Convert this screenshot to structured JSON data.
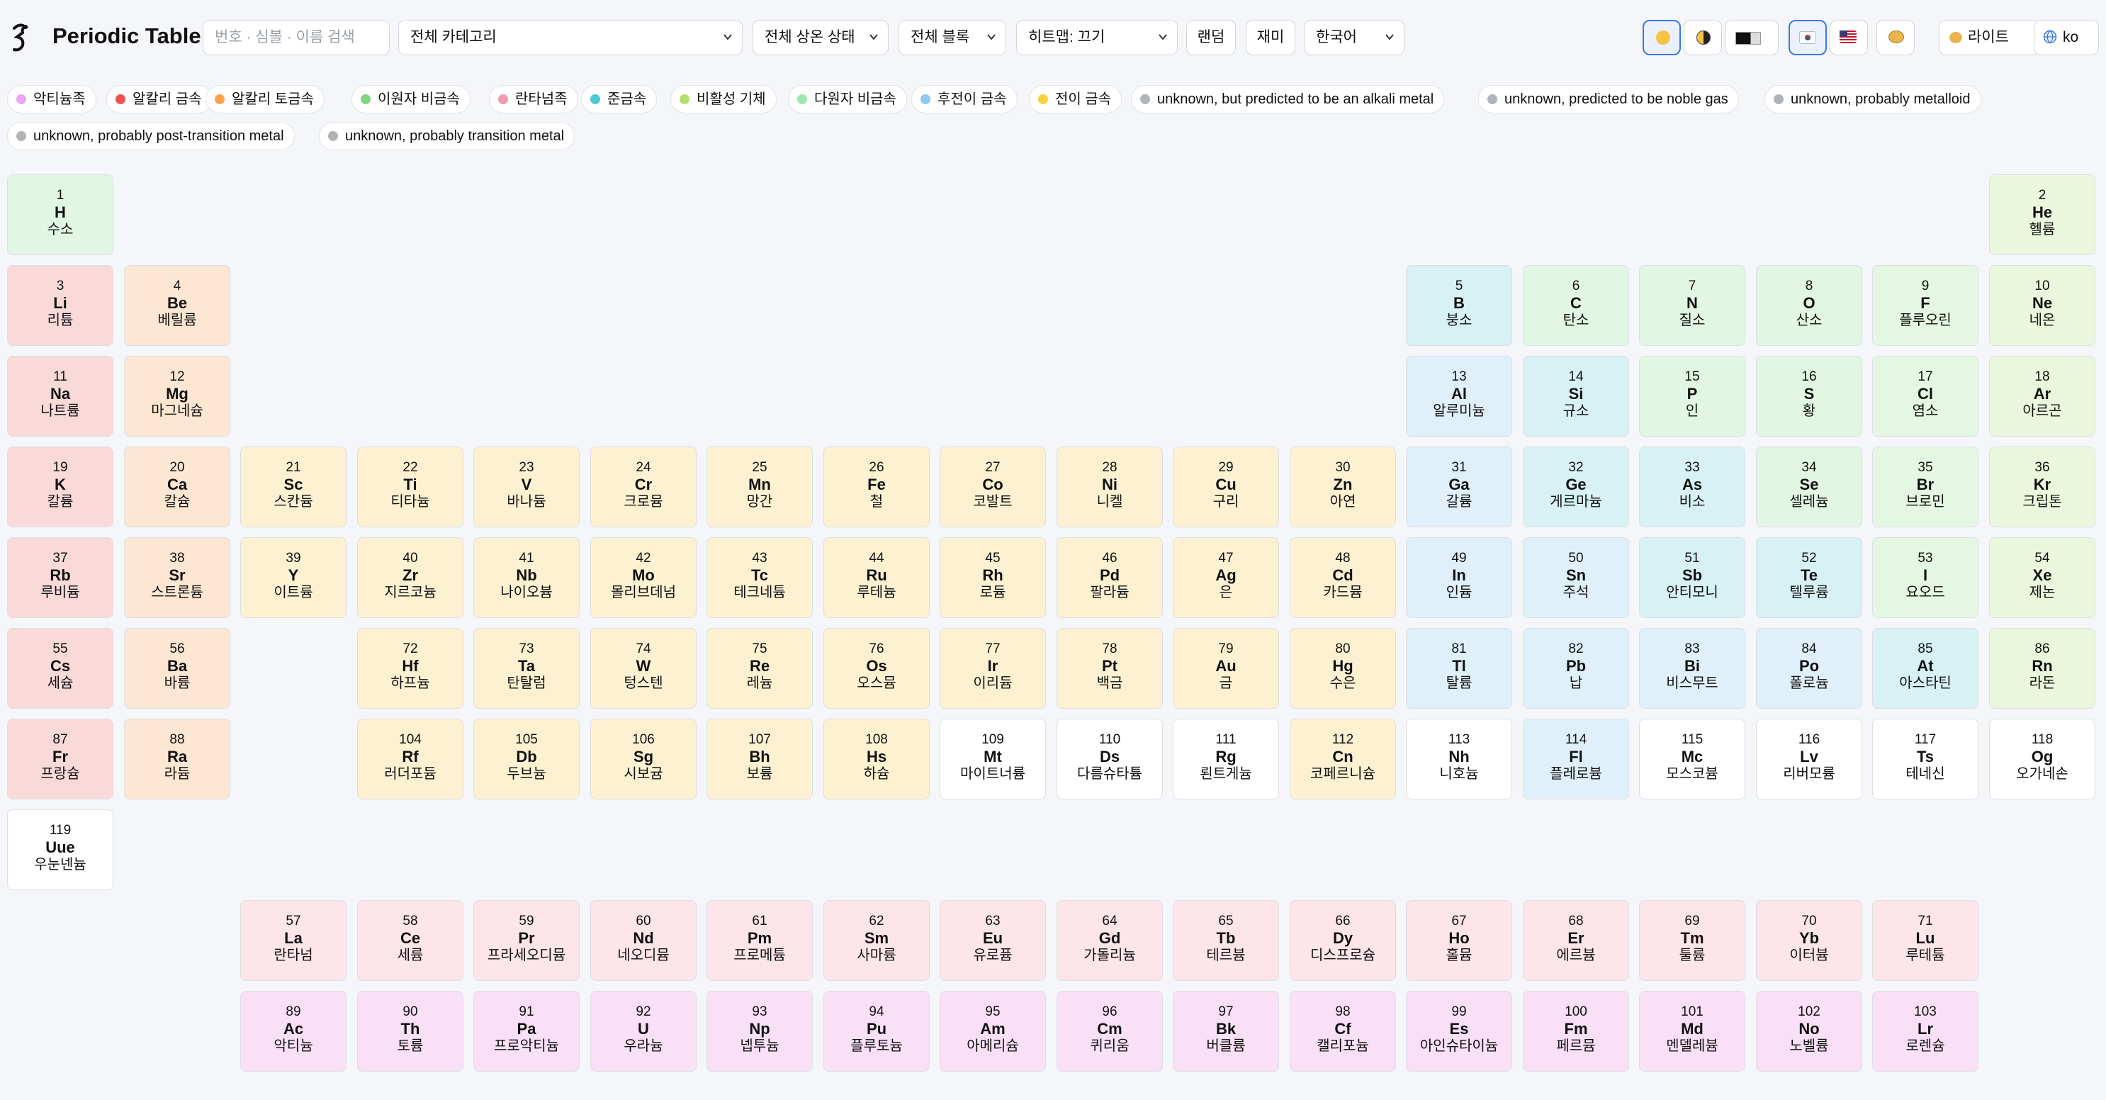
{
  "toolbar": {
    "title": "Periodic Table",
    "search_placeholder": "번호 · 심볼 · 이름 검색",
    "category_select": "전체 카테고리",
    "phase_select": "전체 상온 상태",
    "block_select": "전체 블록",
    "heatmap_select": "히트맵: 끄기",
    "random_button": "랜덤",
    "fun_button": "재미",
    "language_select": "한국어",
    "theme_label": "라이트",
    "locale_label": "ko",
    "icons": [
      "sun-icon",
      "contrast-icon",
      "dark-mode-icon",
      "flag-kr-icon",
      "flag-us-icon",
      "palette-icon",
      "globe-icon"
    ]
  },
  "legend": [
    {
      "label": "악티늄족",
      "color": "#e6a8f0"
    },
    {
      "label": "알칼리 금속",
      "color": "#ef5350"
    },
    {
      "label": "알칼리 토금속",
      "color": "#ffa24c"
    },
    {
      "label": "이원자 비금속",
      "color": "#7fd67f"
    },
    {
      "label": "란타넘족",
      "color": "#f59ab2"
    },
    {
      "label": "준금속",
      "color": "#4cc9d8"
    },
    {
      "label": "비활성 기체",
      "color": "#b5e06b"
    },
    {
      "label": "다원자 비금속",
      "color": "#9ee6b0"
    },
    {
      "label": "후전이 금속",
      "color": "#8fc8f3"
    },
    {
      "label": "전이 금속",
      "color": "#f6d43a"
    },
    {
      "label": "unknown, but predicted to be an alkali metal",
      "color": "#b0b4b9"
    },
    {
      "label": "unknown, predicted to be noble gas",
      "color": "#b0b4b9"
    },
    {
      "label": "unknown, probably metalloid",
      "color": "#b0b4b9"
    },
    {
      "label": "unknown, probably post-transition metal",
      "color": "#b0b4b9"
    },
    {
      "label": "unknown, probably transition metal",
      "color": "#b0b4b9"
    }
  ],
  "elements": [
    {
      "n": "1",
      "s": "H",
      "k": "수소",
      "c": "nonmetal"
    },
    {
      "n": "2",
      "s": "He",
      "k": "헬륨",
      "c": "noble"
    },
    {
      "n": "3",
      "s": "Li",
      "k": "리튬",
      "c": "alkali"
    },
    {
      "n": "4",
      "s": "Be",
      "k": "베릴륨",
      "c": "alkaline"
    },
    {
      "n": "5",
      "s": "B",
      "k": "붕소",
      "c": "metalloid"
    },
    {
      "n": "6",
      "s": "C",
      "k": "탄소",
      "c": "nonmetal"
    },
    {
      "n": "7",
      "s": "N",
      "k": "질소",
      "c": "nonmetal"
    },
    {
      "n": "8",
      "s": "O",
      "k": "산소",
      "c": "nonmetal"
    },
    {
      "n": "9",
      "s": "F",
      "k": "플루오린",
      "c": "halogen"
    },
    {
      "n": "10",
      "s": "Ne",
      "k": "네온",
      "c": "noble"
    },
    {
      "n": "11",
      "s": "Na",
      "k": "나트륨",
      "c": "alkali"
    },
    {
      "n": "12",
      "s": "Mg",
      "k": "마그네슘",
      "c": "alkaline"
    },
    {
      "n": "13",
      "s": "Al",
      "k": "알루미늄",
      "c": "post"
    },
    {
      "n": "14",
      "s": "Si",
      "k": "규소",
      "c": "metalloid"
    },
    {
      "n": "15",
      "s": "P",
      "k": "인",
      "c": "nonmetal"
    },
    {
      "n": "16",
      "s": "S",
      "k": "황",
      "c": "nonmetal"
    },
    {
      "n": "17",
      "s": "Cl",
      "k": "염소",
      "c": "halogen"
    },
    {
      "n": "18",
      "s": "Ar",
      "k": "아르곤",
      "c": "noble"
    },
    {
      "n": "19",
      "s": "K",
      "k": "칼륨",
      "c": "alkali"
    },
    {
      "n": "20",
      "s": "Ca",
      "k": "칼슘",
      "c": "alkaline"
    },
    {
      "n": "21",
      "s": "Sc",
      "k": "스칸듐",
      "c": "transition"
    },
    {
      "n": "22",
      "s": "Ti",
      "k": "티타늄",
      "c": "transition"
    },
    {
      "n": "23",
      "s": "V",
      "k": "바나듐",
      "c": "transition"
    },
    {
      "n": "24",
      "s": "Cr",
      "k": "크로뮴",
      "c": "transition"
    },
    {
      "n": "25",
      "s": "Mn",
      "k": "망간",
      "c": "transition"
    },
    {
      "n": "26",
      "s": "Fe",
      "k": "철",
      "c": "transition"
    },
    {
      "n": "27",
      "s": "Co",
      "k": "코발트",
      "c": "transition"
    },
    {
      "n": "28",
      "s": "Ni",
      "k": "니켈",
      "c": "transition"
    },
    {
      "n": "29",
      "s": "Cu",
      "k": "구리",
      "c": "transition"
    },
    {
      "n": "30",
      "s": "Zn",
      "k": "아연",
      "c": "transition"
    },
    {
      "n": "31",
      "s": "Ga",
      "k": "갈륨",
      "c": "post"
    },
    {
      "n": "32",
      "s": "Ge",
      "k": "게르마늄",
      "c": "metalloid"
    },
    {
      "n": "33",
      "s": "As",
      "k": "비소",
      "c": "metalloid"
    },
    {
      "n": "34",
      "s": "Se",
      "k": "셀레늄",
      "c": "nonmetal"
    },
    {
      "n": "35",
      "s": "Br",
      "k": "브로민",
      "c": "halogen"
    },
    {
      "n": "36",
      "s": "Kr",
      "k": "크립톤",
      "c": "noble"
    },
    {
      "n": "37",
      "s": "Rb",
      "k": "루비듐",
      "c": "alkali"
    },
    {
      "n": "38",
      "s": "Sr",
      "k": "스트론튬",
      "c": "alkaline"
    },
    {
      "n": "39",
      "s": "Y",
      "k": "이트륨",
      "c": "transition"
    },
    {
      "n": "40",
      "s": "Zr",
      "k": "지르코늄",
      "c": "transition"
    },
    {
      "n": "41",
      "s": "Nb",
      "k": "나이오븀",
      "c": "transition"
    },
    {
      "n": "42",
      "s": "Mo",
      "k": "몰리브데넘",
      "c": "transition"
    },
    {
      "n": "43",
      "s": "Tc",
      "k": "테크네튬",
      "c": "transition"
    },
    {
      "n": "44",
      "s": "Ru",
      "k": "루테늄",
      "c": "transition"
    },
    {
      "n": "45",
      "s": "Rh",
      "k": "로듐",
      "c": "transition"
    },
    {
      "n": "46",
      "s": "Pd",
      "k": "팔라듐",
      "c": "transition"
    },
    {
      "n": "47",
      "s": "Ag",
      "k": "은",
      "c": "transition"
    },
    {
      "n": "48",
      "s": "Cd",
      "k": "카드뮴",
      "c": "transition"
    },
    {
      "n": "49",
      "s": "In",
      "k": "인듐",
      "c": "post"
    },
    {
      "n": "50",
      "s": "Sn",
      "k": "주석",
      "c": "post"
    },
    {
      "n": "51",
      "s": "Sb",
      "k": "안티모니",
      "c": "metalloid"
    },
    {
      "n": "52",
      "s": "Te",
      "k": "텔루륨",
      "c": "metalloid"
    },
    {
      "n": "53",
      "s": "I",
      "k": "요오드",
      "c": "halogen"
    },
    {
      "n": "54",
      "s": "Xe",
      "k": "제논",
      "c": "noble"
    },
    {
      "n": "55",
      "s": "Cs",
      "k": "세슘",
      "c": "alkali"
    },
    {
      "n": "56",
      "s": "Ba",
      "k": "바륨",
      "c": "alkaline"
    },
    {
      "n": "72",
      "s": "Hf",
      "k": "하프늄",
      "c": "transition"
    },
    {
      "n": "73",
      "s": "Ta",
      "k": "탄탈럼",
      "c": "transition"
    },
    {
      "n": "74",
      "s": "W",
      "k": "텅스텐",
      "c": "transition"
    },
    {
      "n": "75",
      "s": "Re",
      "k": "레늄",
      "c": "transition"
    },
    {
      "n": "76",
      "s": "Os",
      "k": "오스뮴",
      "c": "transition"
    },
    {
      "n": "77",
      "s": "Ir",
      "k": "이리듐",
      "c": "transition"
    },
    {
      "n": "78",
      "s": "Pt",
      "k": "백금",
      "c": "transition"
    },
    {
      "n": "79",
      "s": "Au",
      "k": "금",
      "c": "transition"
    },
    {
      "n": "80",
      "s": "Hg",
      "k": "수은",
      "c": "transition"
    },
    {
      "n": "81",
      "s": "Tl",
      "k": "탈륨",
      "c": "post"
    },
    {
      "n": "82",
      "s": "Pb",
      "k": "납",
      "c": "post"
    },
    {
      "n": "83",
      "s": "Bi",
      "k": "비스무트",
      "c": "post"
    },
    {
      "n": "84",
      "s": "Po",
      "k": "폴로늄",
      "c": "post"
    },
    {
      "n": "85",
      "s": "At",
      "k": "아스타틴",
      "c": "metalloid"
    },
    {
      "n": "86",
      "s": "Rn",
      "k": "라돈",
      "c": "noble"
    },
    {
      "n": "87",
      "s": "Fr",
      "k": "프랑슘",
      "c": "alkali"
    },
    {
      "n": "88",
      "s": "Ra",
      "k": "라듐",
      "c": "alkaline"
    },
    {
      "n": "104",
      "s": "Rf",
      "k": "러더포듐",
      "c": "transition"
    },
    {
      "n": "105",
      "s": "Db",
      "k": "두브늄",
      "c": "transition"
    },
    {
      "n": "106",
      "s": "Sg",
      "k": "시보귬",
      "c": "transition"
    },
    {
      "n": "107",
      "s": "Bh",
      "k": "보륨",
      "c": "transition"
    },
    {
      "n": "108",
      "s": "Hs",
      "k": "하슘",
      "c": "transition"
    },
    {
      "n": "109",
      "s": "Mt",
      "k": "마이트너륨",
      "c": "unknown"
    },
    {
      "n": "110",
      "s": "Ds",
      "k": "다름슈타튬",
      "c": "unknown"
    },
    {
      "n": "111",
      "s": "Rg",
      "k": "뢴트게늄",
      "c": "unknown"
    },
    {
      "n": "112",
      "s": "Cn",
      "k": "코페르니슘",
      "c": "transition"
    },
    {
      "n": "113",
      "s": "Nh",
      "k": "니호늄",
      "c": "unknown"
    },
    {
      "n": "114",
      "s": "Fl",
      "k": "플레로븀",
      "c": "post"
    },
    {
      "n": "115",
      "s": "Mc",
      "k": "모스코븀",
      "c": "unknown"
    },
    {
      "n": "116",
      "s": "Lv",
      "k": "리버모륨",
      "c": "unknown"
    },
    {
      "n": "117",
      "s": "Ts",
      "k": "테네신",
      "c": "unknown"
    },
    {
      "n": "118",
      "s": "Og",
      "k": "오가네손",
      "c": "unknown"
    },
    {
      "n": "119",
      "s": "Uue",
      "k": "우눈넨늄",
      "c": "unknown"
    },
    {
      "n": "57",
      "s": "La",
      "k": "란타넘",
      "c": "lanth"
    },
    {
      "n": "58",
      "s": "Ce",
      "k": "세륨",
      "c": "lanth"
    },
    {
      "n": "59",
      "s": "Pr",
      "k": "프라세오디뮴",
      "c": "lanth"
    },
    {
      "n": "60",
      "s": "Nd",
      "k": "네오디뮴",
      "c": "lanth"
    },
    {
      "n": "61",
      "s": "Pm",
      "k": "프로메튬",
      "c": "lanth"
    },
    {
      "n": "62",
      "s": "Sm",
      "k": "사마륨",
      "c": "lanth"
    },
    {
      "n": "63",
      "s": "Eu",
      "k": "유로퓸",
      "c": "lanth"
    },
    {
      "n": "64",
      "s": "Gd",
      "k": "가돌리늄",
      "c": "lanth"
    },
    {
      "n": "65",
      "s": "Tb",
      "k": "테르븀",
      "c": "lanth"
    },
    {
      "n": "66",
      "s": "Dy",
      "k": "디스프로슘",
      "c": "lanth"
    },
    {
      "n": "67",
      "s": "Ho",
      "k": "홀뮴",
      "c": "lanth"
    },
    {
      "n": "68",
      "s": "Er",
      "k": "에르븀",
      "c": "lanth"
    },
    {
      "n": "69",
      "s": "Tm",
      "k": "툴륨",
      "c": "lanth"
    },
    {
      "n": "70",
      "s": "Yb",
      "k": "이터븀",
      "c": "lanth"
    },
    {
      "n": "71",
      "s": "Lu",
      "k": "루테튬",
      "c": "lanth"
    },
    {
      "n": "89",
      "s": "Ac",
      "k": "악티늄",
      "c": "actin"
    },
    {
      "n": "90",
      "s": "Th",
      "k": "토륨",
      "c": "actin"
    },
    {
      "n": "91",
      "s": "Pa",
      "k": "프로악티늄",
      "c": "actin"
    },
    {
      "n": "92",
      "s": "U",
      "k": "우라늄",
      "c": "actin"
    },
    {
      "n": "93",
      "s": "Np",
      "k": "넵투늄",
      "c": "actin"
    },
    {
      "n": "94",
      "s": "Pu",
      "k": "플루토늄",
      "c": "actin"
    },
    {
      "n": "95",
      "s": "Am",
      "k": "아메리슘",
      "c": "actin"
    },
    {
      "n": "96",
      "s": "Cm",
      "k": "퀴리움",
      "c": "actin"
    },
    {
      "n": "97",
      "s": "Bk",
      "k": "버클륨",
      "c": "actin"
    },
    {
      "n": "98",
      "s": "Cf",
      "k": "캘리포늄",
      "c": "actin"
    },
    {
      "n": "99",
      "s": "Es",
      "k": "아인슈타이늄",
      "c": "actin"
    },
    {
      "n": "100",
      "s": "Fm",
      "k": "페르뮴",
      "c": "actin"
    },
    {
      "n": "101",
      "s": "Md",
      "k": "멘델레븀",
      "c": "actin"
    },
    {
      "n": "102",
      "s": "No",
      "k": "노벨륨",
      "c": "actin"
    },
    {
      "n": "103",
      "s": "Lr",
      "k": "로렌슘",
      "c": "actin"
    }
  ]
}
